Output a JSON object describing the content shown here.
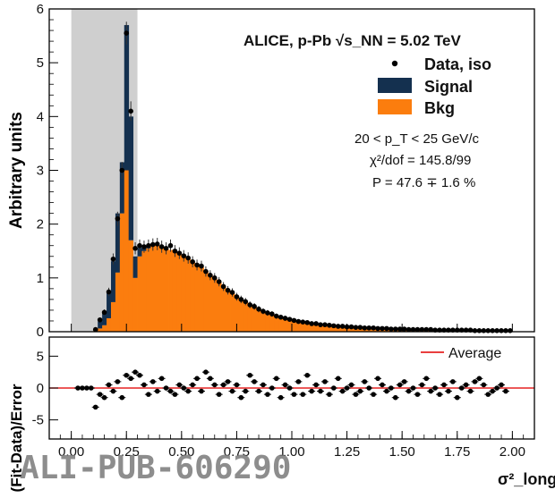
{
  "watermark": "ALI-PUB-606290",
  "colors": {
    "signal": "#14304f",
    "bkg": "#fb7d0e",
    "shade": "#cfcfcf",
    "points": "#000000",
    "average": "#e62222",
    "frame": "#000000"
  },
  "chart_data": [
    {
      "panel": "main",
      "type": "bar",
      "ylabel": "Arbitrary units",
      "xlim": [
        -0.1,
        2.1
      ],
      "ylim": [
        0,
        6
      ],
      "yticks": [
        0,
        1,
        2,
        3,
        4,
        5,
        6
      ],
      "shaded_range": [
        0.0,
        0.3
      ],
      "legend": [
        {
          "label": "Data, iso",
          "marker": "point"
        },
        {
          "label": "Signal",
          "marker": "box"
        },
        {
          "label": "Bkg",
          "marker": "box"
        }
      ],
      "annotations": [
        "ALICE, p-Pb √s_NN = 5.02 TeV",
        "20 < p_T < 25 GeV/c",
        "χ²/dof = 145.8/99",
        "P = 47.6 ∓ 1.6 %"
      ],
      "x_centers": [
        0.11,
        0.13,
        0.15,
        0.17,
        0.19,
        0.21,
        0.23,
        0.25,
        0.27,
        0.29,
        0.31,
        0.33,
        0.35,
        0.37,
        0.39,
        0.41,
        0.43,
        0.45,
        0.47,
        0.49,
        0.51,
        0.53,
        0.55,
        0.57,
        0.59,
        0.61,
        0.63,
        0.65,
        0.67,
        0.69,
        0.71,
        0.73,
        0.75,
        0.77,
        0.79,
        0.81,
        0.83,
        0.85,
        0.87,
        0.89,
        0.91,
        0.93,
        0.95,
        0.97,
        0.99,
        1.01,
        1.03,
        1.05,
        1.07,
        1.09,
        1.11,
        1.13,
        1.15,
        1.17,
        1.19,
        1.21,
        1.23,
        1.25,
        1.27,
        1.29,
        1.31,
        1.33,
        1.35,
        1.37,
        1.39,
        1.41,
        1.43,
        1.45,
        1.47,
        1.49,
        1.51,
        1.53,
        1.55,
        1.57,
        1.59,
        1.61,
        1.63,
        1.65,
        1.67,
        1.69,
        1.71,
        1.73,
        1.75,
        1.77,
        1.79,
        1.81,
        1.83,
        1.85,
        1.87,
        1.89,
        1.91,
        1.93,
        1.95,
        1.97,
        1.99
      ],
      "series": [
        {
          "name": "Bkg",
          "values": [
            0.02,
            0.06,
            0.12,
            0.25,
            0.55,
            1.1,
            2.2,
            3.0,
            1.7,
            1.0,
            1.4,
            1.5,
            1.55,
            1.6,
            1.6,
            1.58,
            1.55,
            1.52,
            1.48,
            1.44,
            1.4,
            1.35,
            1.3,
            1.25,
            1.2,
            1.13,
            1.06,
            0.99,
            0.92,
            0.85,
            0.78,
            0.72,
            0.66,
            0.6,
            0.55,
            0.5,
            0.46,
            0.42,
            0.38,
            0.35,
            0.32,
            0.29,
            0.27,
            0.25,
            0.23,
            0.21,
            0.195,
            0.18,
            0.165,
            0.155,
            0.145,
            0.135,
            0.125,
            0.118,
            0.11,
            0.104,
            0.098,
            0.092,
            0.087,
            0.082,
            0.078,
            0.074,
            0.07,
            0.066,
            0.063,
            0.06,
            0.057,
            0.054,
            0.051,
            0.049,
            0.047,
            0.045,
            0.043,
            0.041,
            0.039,
            0.037,
            0.036,
            0.034,
            0.033,
            0.031,
            0.03,
            0.029,
            0.028,
            0.027,
            0.026,
            0.025,
            0.024,
            0.023,
            0.022,
            0.021,
            0.02,
            0.02,
            0.019,
            0.018,
            0.018
          ]
        },
        {
          "name": "Signal",
          "values": [
            0.03,
            0.13,
            0.26,
            0.47,
            0.76,
            1.1,
            0.95,
            2.7,
            2.3,
            0.4,
            0.16,
            0.07,
            0.03,
            0.01,
            0,
            0,
            0,
            0,
            0,
            0,
            0,
            0,
            0,
            0,
            0,
            0,
            0,
            0,
            0,
            0,
            0,
            0,
            0,
            0,
            0,
            0,
            0,
            0,
            0,
            0,
            0,
            0,
            0,
            0,
            0,
            0,
            0,
            0,
            0,
            0,
            0,
            0,
            0,
            0,
            0,
            0,
            0,
            0,
            0,
            0,
            0,
            0,
            0,
            0,
            0,
            0,
            0,
            0,
            0,
            0,
            0,
            0,
            0,
            0,
            0,
            0,
            0,
            0,
            0,
            0,
            0,
            0,
            0,
            0,
            0,
            0,
            0,
            0,
            0,
            0,
            0,
            0,
            0,
            0,
            0
          ]
        },
        {
          "name": "Data, iso",
          "values": [
            0.04,
            0.22,
            0.36,
            0.74,
            1.35,
            2.1,
            3.0,
            5.55,
            4.1,
            1.55,
            1.6,
            1.58,
            1.6,
            1.62,
            1.63,
            1.58,
            1.55,
            1.6,
            1.5,
            1.46,
            1.41,
            1.37,
            1.3,
            1.24,
            1.22,
            1.12,
            1.05,
            1.0,
            0.93,
            0.84,
            0.77,
            0.73,
            0.65,
            0.6,
            0.56,
            0.5,
            0.47,
            0.42,
            0.38,
            0.35,
            0.33,
            0.29,
            0.27,
            0.25,
            0.23,
            0.21,
            0.19,
            0.18,
            0.17,
            0.15,
            0.15,
            0.13,
            0.13,
            0.12,
            0.11,
            0.1,
            0.1,
            0.09,
            0.09,
            0.08,
            0.08,
            0.07,
            0.07,
            0.07,
            0.06,
            0.06,
            0.06,
            0.05,
            0.05,
            0.05,
            0.05,
            0.04,
            0.04,
            0.04,
            0.04,
            0.04,
            0.04,
            0.03,
            0.03,
            0.03,
            0.03,
            0.03,
            0.03,
            0.03,
            0.03,
            0.03,
            0.02,
            0.02,
            0.02,
            0.02,
            0.02,
            0.02,
            0.02,
            0.02,
            0.02
          ]
        }
      ]
    },
    {
      "panel": "ratio",
      "type": "scatter",
      "ylabel": "(Fit-Data)/Error",
      "xlabel": "σ²_long",
      "xlim": [
        -0.1,
        2.1
      ],
      "ylim": [
        -8,
        8
      ],
      "xticks": [
        0.0,
        0.25,
        0.5,
        0.75,
        1.0,
        1.25,
        1.5,
        1.75,
        2.0
      ],
      "xtick_labels": [
        "0.00",
        "0.25",
        "0.50",
        "0.75",
        "1.00",
        "1.25",
        "1.50",
        "1.75",
        "2.00"
      ],
      "yticks": [
        -5,
        0,
        5
      ],
      "average_line": {
        "label": "Average",
        "value": 0
      },
      "series": [
        {
          "name": "(Fit-Data)/Error",
          "x": [
            0.03,
            0.05,
            0.07,
            0.09,
            0.11,
            0.13,
            0.15,
            0.17,
            0.19,
            0.21,
            0.23,
            0.25,
            0.27,
            0.29,
            0.31,
            0.33,
            0.35,
            0.37,
            0.39,
            0.41,
            0.43,
            0.45,
            0.47,
            0.49,
            0.51,
            0.53,
            0.55,
            0.57,
            0.59,
            0.61,
            0.63,
            0.65,
            0.67,
            0.69,
            0.71,
            0.73,
            0.75,
            0.77,
            0.79,
            0.81,
            0.83,
            0.85,
            0.87,
            0.89,
            0.91,
            0.93,
            0.95,
            0.97,
            0.99,
            1.01,
            1.03,
            1.05,
            1.07,
            1.09,
            1.11,
            1.13,
            1.15,
            1.17,
            1.19,
            1.21,
            1.23,
            1.25,
            1.27,
            1.29,
            1.31,
            1.33,
            1.35,
            1.37,
            1.39,
            1.41,
            1.43,
            1.45,
            1.47,
            1.49,
            1.51,
            1.53,
            1.55,
            1.57,
            1.59,
            1.61,
            1.63,
            1.65,
            1.67,
            1.69,
            1.71,
            1.73,
            1.75,
            1.77,
            1.79,
            1.81,
            1.83,
            1.85,
            1.87,
            1.89,
            1.91,
            1.93,
            1.95,
            1.97
          ],
          "values": [
            0,
            0,
            0,
            0,
            -3,
            -1,
            -1.5,
            0.5,
            -0.5,
            1,
            -1.5,
            2,
            1.5,
            2.5,
            2,
            0.5,
            -1,
            1,
            -0.5,
            1.5,
            0,
            -0.5,
            -1,
            0.5,
            0,
            -0.5,
            0.5,
            1.5,
            -0.5,
            2.5,
            1.5,
            0.5,
            -1,
            0.5,
            1,
            -0.5,
            0.5,
            -1.5,
            -0.5,
            2,
            1,
            -0.5,
            0.5,
            -1,
            0,
            1.5,
            -1.5,
            0.5,
            0,
            -1,
            1,
            -1,
            2,
            -0.5,
            0.5,
            -0.5,
            1,
            -1,
            0,
            1.5,
            -0.5,
            0,
            0.5,
            -1,
            -0.5,
            1,
            0,
            -1,
            1.5,
            0.5,
            -0.5,
            0,
            -1.5,
            0.5,
            1,
            -0.5,
            0,
            -1,
            0.5,
            1.5,
            -0.5,
            0,
            -1,
            0.5,
            -0.5,
            1,
            -1.5,
            0,
            0.5,
            -0.5,
            1,
            1.5,
            0.5,
            -1,
            -0.5,
            0,
            0.5,
            -0.5
          ]
        }
      ]
    }
  ]
}
